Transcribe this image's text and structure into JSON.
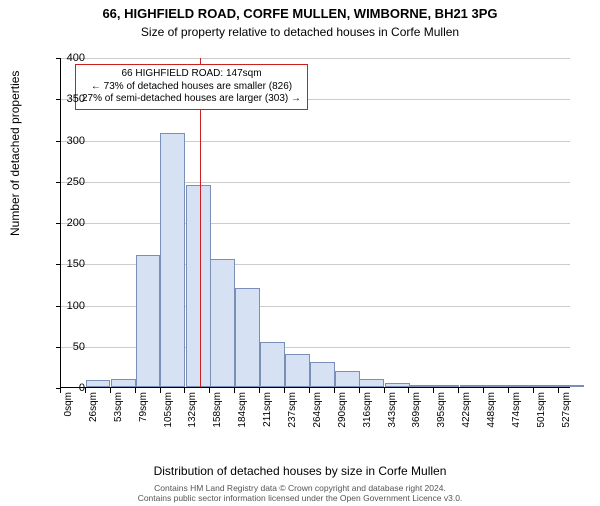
{
  "title": "66, HIGHFIELD ROAD, CORFE MULLEN, WIMBORNE, BH21 3PG",
  "subtitle": "Size of property relative to detached houses in Corfe Mullen",
  "ylabel": "Number of detached properties",
  "xlabel": "Distribution of detached houses by size in Corfe Mullen",
  "footer": "Contains HM Land Registry data © Crown copyright and database right 2024.\nContains public sector information licensed under the Open Government Licence v3.0.",
  "chart": {
    "type": "histogram",
    "background_color": "#ffffff",
    "grid_color": "#cccccc",
    "axis_color": "#000000",
    "text_color": "#000000",
    "bar_fill": "#d6e1f4",
    "bar_stroke": "#7a8fb8",
    "bar_stroke_width": 1,
    "ref_line_color": "#cc1f1f",
    "ref_line_value": 147,
    "xlim": [
      0,
      540
    ],
    "ylim": [
      0,
      400
    ],
    "ytick_step": 50,
    "yticks": [
      0,
      50,
      100,
      150,
      200,
      250,
      300,
      350,
      400
    ],
    "xtick_step": 26.35,
    "xticks_labels": [
      "0sqm",
      "26sqm",
      "53sqm",
      "79sqm",
      "105sqm",
      "132sqm",
      "158sqm",
      "184sqm",
      "211sqm",
      "237sqm",
      "264sqm",
      "290sqm",
      "316sqm",
      "343sqm",
      "369sqm",
      "395sqm",
      "422sqm",
      "448sqm",
      "474sqm",
      "501sqm",
      "527sqm"
    ],
    "bars": [
      {
        "x": 0,
        "count": 0
      },
      {
        "x": 26,
        "count": 8
      },
      {
        "x": 53,
        "count": 10
      },
      {
        "x": 79,
        "count": 160
      },
      {
        "x": 105,
        "count": 308
      },
      {
        "x": 132,
        "count": 245
      },
      {
        "x": 158,
        "count": 155
      },
      {
        "x": 184,
        "count": 120
      },
      {
        "x": 211,
        "count": 55
      },
      {
        "x": 237,
        "count": 40
      },
      {
        "x": 264,
        "count": 30
      },
      {
        "x": 290,
        "count": 20
      },
      {
        "x": 316,
        "count": 10
      },
      {
        "x": 343,
        "count": 5
      },
      {
        "x": 369,
        "count": 3
      },
      {
        "x": 395,
        "count": 3
      },
      {
        "x": 422,
        "count": 2
      },
      {
        "x": 448,
        "count": 1
      },
      {
        "x": 474,
        "count": 2
      },
      {
        "x": 501,
        "count": 1
      },
      {
        "x": 527,
        "count": 1
      }
    ]
  },
  "annotation": {
    "lines": [
      "66 HIGHFIELD ROAD: 147sqm",
      "← 73% of detached houses are smaller (826)",
      "27% of semi-detached houses are larger (303) →"
    ],
    "border_color": "#cc1f1f",
    "background_color": "#ffffff",
    "fontsize": 10
  }
}
